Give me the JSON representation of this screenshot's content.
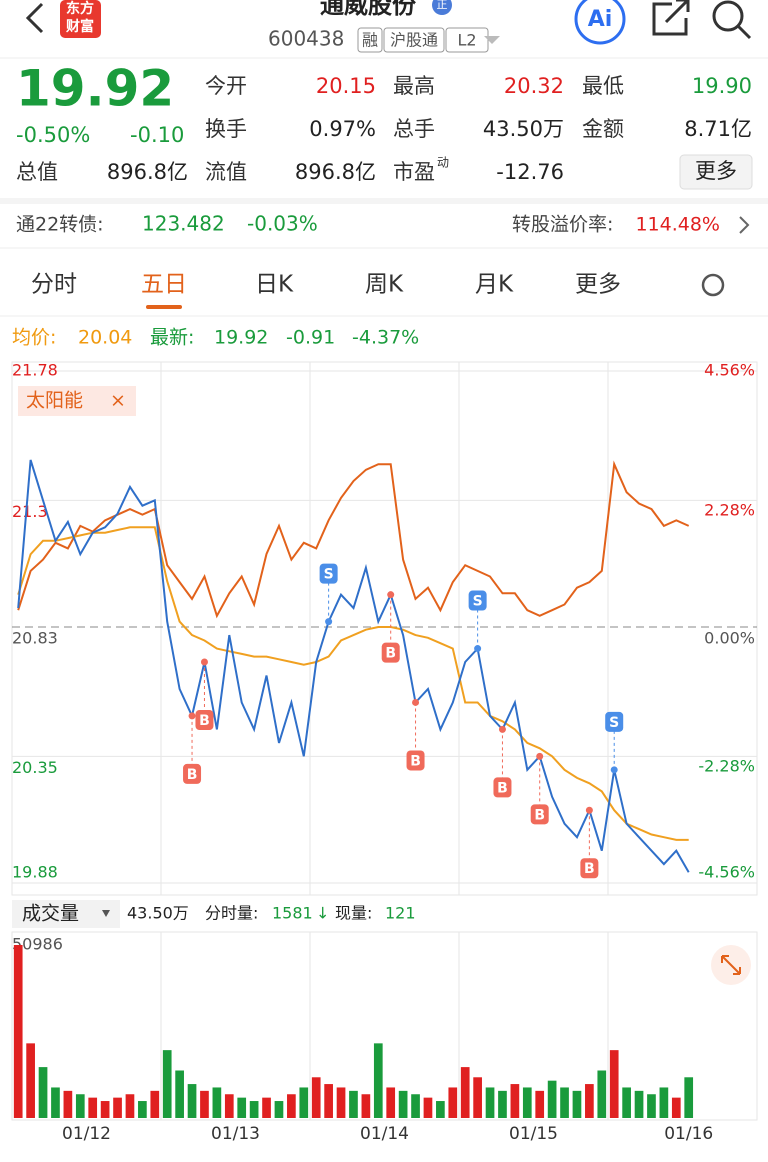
{
  "header": {
    "logo": [
      "东方",
      "财富"
    ],
    "title": "通威股份",
    "badge": "正",
    "code": "600438",
    "tags": [
      "融",
      "沪股通",
      "L2"
    ],
    "ai": "Ai"
  },
  "quote": {
    "price": "19.92",
    "change_pct": "-0.50%",
    "change": "-0.10",
    "fields": [
      {
        "label": "今开",
        "value": "20.15"
      },
      {
        "label": "最高",
        "value": "20.32"
      },
      {
        "label": "最低",
        "value": "19.90"
      },
      {
        "label": "换手",
        "value": "0.97%"
      },
      {
        "label": "总手",
        "value": "43.50万"
      },
      {
        "label": "金额",
        "value": "8.71亿"
      },
      {
        "label": "总值",
        "value": "896.8亿"
      },
      {
        "label": "流值",
        "value": "896.8亿"
      },
      {
        "label": "市盈",
        "sup": "动",
        "value": "-12.76"
      }
    ],
    "more": "更多"
  },
  "bond": {
    "name": "通22转债:",
    "price": "123.482",
    "change": "-0.03%",
    "premium_label": "转股溢价率:",
    "premium": "114.48%"
  },
  "tabs": [
    "分时",
    "五日",
    "日K",
    "周K",
    "月K",
    "更多"
  ],
  "active_tab": 1,
  "legend": {
    "avg_label": "均价:",
    "avg": "20.04",
    "last_label": "最新:",
    "last": "19.92",
    "change": "-0.91",
    "change_pct": "-4.37%"
  },
  "chart_data": {
    "type": "line",
    "sector_tag": "太阳能",
    "x_labels": [
      "01/12",
      "01/13",
      "01/14",
      "01/15",
      "01/16"
    ],
    "ylim": [
      19.88,
      21.78
    ],
    "yticks": [
      21.78,
      21.3,
      20.83,
      20.35,
      19.88
    ],
    "y2lim": [
      -4.56,
      4.56
    ],
    "y2ticks": [
      {
        "value": 4.56,
        "label": "4.56%"
      },
      {
        "value": 2.28,
        "label": "2.28%"
      },
      {
        "value": 0,
        "label": "0.00%"
      },
      {
        "value": -2.28,
        "label": "-2.28%"
      },
      {
        "value": -4.56,
        "label": "-4.56%"
      }
    ],
    "series": [
      {
        "color": "#2f6fc9",
        "values": [
          20.9,
          21.45,
          21.3,
          21.15,
          21.22,
          21.1,
          21.18,
          21.2,
          21.25,
          21.35,
          21.28,
          21.3,
          20.85,
          20.6,
          20.5,
          20.7,
          20.45,
          20.8,
          20.55,
          20.45,
          20.65,
          20.4,
          20.55,
          20.35,
          20.7,
          20.85,
          20.95,
          20.9,
          21.05,
          20.85,
          20.95,
          20.8,
          20.55,
          20.6,
          20.45,
          20.55,
          20.7,
          20.75,
          20.5,
          20.45,
          20.55,
          20.3,
          20.35,
          20.2,
          20.1,
          20.05,
          20.15,
          20.0,
          20.3,
          20.1,
          20.05,
          20.0,
          19.95,
          20.0,
          19.92,
          null,
          null,
          null,
          null,
          null
        ]
      },
      {
        "color": "#f0a020",
        "values": [
          20.95,
          21.1,
          21.15,
          21.15,
          21.16,
          21.17,
          21.18,
          21.18,
          21.19,
          21.2,
          21.2,
          21.2,
          21.0,
          20.85,
          20.8,
          20.78,
          20.75,
          20.74,
          20.73,
          20.72,
          20.72,
          20.71,
          20.7,
          20.69,
          20.7,
          20.72,
          20.78,
          20.8,
          20.82,
          20.83,
          20.83,
          20.82,
          20.8,
          20.79,
          20.77,
          20.75,
          20.55,
          20.55,
          20.5,
          20.48,
          20.45,
          20.4,
          20.38,
          20.35,
          20.3,
          20.27,
          20.25,
          20.22,
          20.15,
          20.1,
          20.08,
          20.06,
          20.05,
          20.04,
          20.04,
          null,
          null,
          null,
          null,
          null
        ]
      },
      {
        "name": "太阳能",
        "color": "#e2621b",
        "axis": "y2",
        "values": [
          0.3,
          1.0,
          1.2,
          1.5,
          1.4,
          1.8,
          1.7,
          1.9,
          2.0,
          2.1,
          2.0,
          2.1,
          1.1,
          0.8,
          0.5,
          0.9,
          0.2,
          0.6,
          0.9,
          0.4,
          1.3,
          1.8,
          1.2,
          1.5,
          1.4,
          1.9,
          2.3,
          2.6,
          2.8,
          2.9,
          2.9,
          1.2,
          0.5,
          0.7,
          0.3,
          0.8,
          1.1,
          1.0,
          0.9,
          0.6,
          0.6,
          0.3,
          0.2,
          0.3,
          0.4,
          0.7,
          0.8,
          1.0,
          2.9,
          2.4,
          2.2,
          2.1,
          1.8,
          1.9,
          1.8,
          null,
          null,
          null,
          null,
          null
        ]
      }
    ],
    "trades": [
      {
        "label": "B",
        "index": 14,
        "price": 20.5
      },
      {
        "label": "B",
        "index": 15,
        "price": 20.7
      },
      {
        "label": "S",
        "index": 25,
        "price": 20.85
      },
      {
        "label": "B",
        "index": 30,
        "price": 20.95
      },
      {
        "label": "B",
        "index": 32,
        "price": 20.55
      },
      {
        "label": "S",
        "index": 37,
        "price": 20.75
      },
      {
        "label": "B",
        "index": 39,
        "price": 20.45
      },
      {
        "label": "B",
        "index": 42,
        "price": 20.35
      },
      {
        "label": "B",
        "index": 46,
        "price": 20.15
      },
      {
        "label": "S",
        "index": 48,
        "price": 20.3
      }
    ],
    "volume": {
      "label": "成交量",
      "total": "43.50万",
      "tick_label": "分时量:",
      "tick": "1581",
      "now_label": "现量:",
      "now": "121",
      "ylim": [
        0,
        50986
      ],
      "yticks": [
        50986
      ],
      "values": [
        50986,
        22000,
        15000,
        9000,
        8000,
        7000,
        6000,
        5000,
        6000,
        7000,
        5000,
        8000,
        20000,
        14000,
        10000,
        8000,
        9000,
        7000,
        6000,
        5000,
        6000,
        5000,
        7000,
        9000,
        12000,
        10000,
        9000,
        8000,
        7000,
        22000,
        9000,
        8000,
        7000,
        6000,
        5000,
        9000,
        15000,
        12000,
        9000,
        8000,
        10000,
        9000,
        8000,
        11000,
        9000,
        8000,
        10000,
        14000,
        20000,
        9000,
        8000,
        7000,
        9000,
        6000,
        12000,
        null,
        null,
        null,
        null,
        null
      ]
    }
  }
}
